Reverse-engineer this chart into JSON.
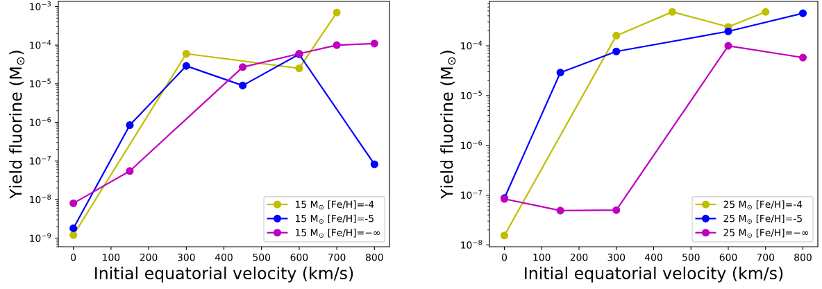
{
  "chart_data": [
    {
      "type": "line",
      "xlabel": "Initial equatorial velocity (km/s)",
      "ylabel": "Yield fluorine (M$_{⊙}$)",
      "log": "y",
      "xlim": [
        -40,
        840
      ],
      "xticks": [
        0,
        100,
        200,
        300,
        400,
        500,
        600,
        700,
        800
      ],
      "ylim": [
        6e-10,
        0.00136
      ],
      "yticks": [
        {
          "value": 1e-09,
          "label": "10$^{−9}$"
        },
        {
          "value": 1e-08,
          "label": "10$^{−8}$"
        },
        {
          "value": 1e-07,
          "label": "10$^{−7}$"
        },
        {
          "value": 1e-06,
          "label": "10$^{−6}$"
        },
        {
          "value": 1e-05,
          "label": "10$^{−5}$"
        },
        {
          "value": 0.0001,
          "label": "10$^{−4}$"
        },
        {
          "value": 0.001,
          "label": "10$^{−3}$"
        }
      ],
      "legend": "lower right",
      "marker": "circle",
      "line_style": "solid",
      "grid": false,
      "series": [
        {
          "name": "15 M$_{⊙}$ [Fe/H]=-4",
          "color": "#bfbf00",
          "x": [
            0,
            300,
            600,
            700
          ],
          "values": [
            1.2e-09,
            6e-05,
            2.5e-05,
            0.0007
          ]
        },
        {
          "name": "15 M$_{⊙}$ [Fe/H]=-5",
          "color": "#0000ff",
          "x": [
            0,
            150,
            300,
            450,
            600,
            800
          ],
          "values": [
            1.8e-09,
            8.5e-07,
            2.9e-05,
            9e-06,
            5.8e-05,
            8.2e-08
          ]
        },
        {
          "name": "15 M$_{⊙}$ [Fe/H]=−∞",
          "color": "#bf00bf",
          "x": [
            0,
            150,
            450,
            600,
            700,
            800
          ],
          "values": [
            8e-09,
            5.5e-08,
            2.7e-05,
            6e-05,
            0.0001,
            0.00011
          ]
        }
      ]
    },
    {
      "type": "line",
      "xlabel": "Initial equatorial velocity (km/s)",
      "ylabel": "Yield fluorine (M$_{⊙}$)",
      "log": "y",
      "xlim": [
        -40,
        840
      ],
      "xticks": [
        0,
        100,
        200,
        300,
        400,
        500,
        600,
        700,
        800
      ],
      "ylim": [
        9.2e-09,
        0.00078
      ],
      "yticks": [
        {
          "value": 1e-08,
          "label": "10$^{−8}$"
        },
        {
          "value": 1e-07,
          "label": "10$^{−7}$"
        },
        {
          "value": 1e-06,
          "label": "10$^{−6}$"
        },
        {
          "value": 1e-05,
          "label": "10$^{−5}$"
        },
        {
          "value": 0.0001,
          "label": "10$^{−4}$"
        }
      ],
      "legend": "lower right",
      "marker": "circle",
      "line_style": "solid",
      "grid": false,
      "series": [
        {
          "name": "25 M$_{⊙}$ [Fe/H]=-4",
          "color": "#bfbf00",
          "x": [
            0,
            300,
            450,
            600,
            700
          ],
          "values": [
            1.55e-08,
            0.00016,
            0.00048,
            0.00024,
            0.00048
          ]
        },
        {
          "name": "25 M$_{⊙}$ [Fe/H]=-5",
          "color": "#0000ff",
          "x": [
            0,
            150,
            300,
            600,
            800
          ],
          "values": [
            8.7e-08,
            2.9e-05,
            7.7e-05,
            0.000195,
            0.00045
          ]
        },
        {
          "name": "25 M$_{⊙}$ [Fe/H]=−∞",
          "color": "#bf00bf",
          "x": [
            0,
            150,
            300,
            600,
            800
          ],
          "values": [
            8.4e-08,
            4.9e-08,
            5e-08,
            0.0001,
            5.8e-05
          ]
        }
      ]
    }
  ]
}
